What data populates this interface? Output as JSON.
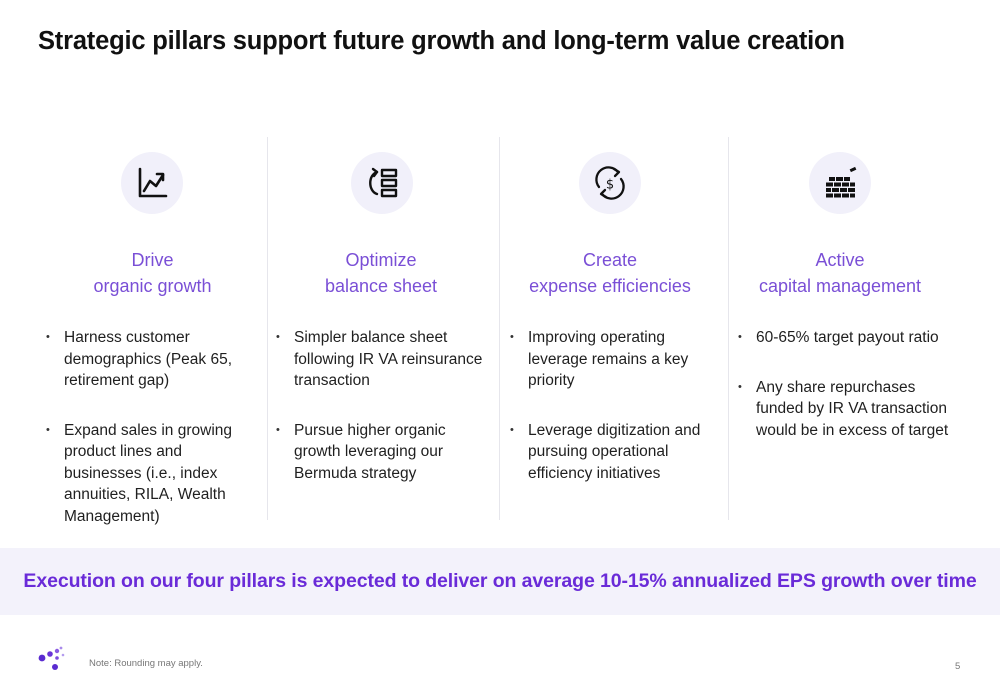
{
  "slide": {
    "title": "Strategic pillars support future growth and long-term value creation",
    "accent_color": "#7a4fd6",
    "banner_color": "#6a2bd8",
    "banner_text": "Execution on our four pillars is expected to deliver on average 10-15% annualized EPS growth over time",
    "note": "Note: Rounding may apply.",
    "page_number": "5"
  },
  "pillars": [
    {
      "icon": "growth-chart-icon",
      "heading_line1": "Drive",
      "heading_line2": "organic growth",
      "bullets": [
        "Harness customer demographics (Peak 65, retirement gap)",
        "Expand sales in growing product lines and businesses (i.e., index annuities, RILA, Wealth Management)"
      ]
    },
    {
      "icon": "balance-sheet-icon",
      "heading_line1": "Optimize",
      "heading_line2": "balance sheet",
      "bullets": [
        "Simpler balance sheet following IR VA reinsurance transaction",
        "Pursue higher organic growth leveraging our Bermuda strategy"
      ]
    },
    {
      "icon": "dollar-cycle-icon",
      "heading_line1": "Create",
      "heading_line2": "expense efficiencies",
      "bullets": [
        "Improving operating leverage remains a key priority",
        "Leverage digitization and pursuing operational efficiency initiatives"
      ]
    },
    {
      "icon": "brick-wall-icon",
      "heading_line1": "Active",
      "heading_line2": "capital management",
      "bullets": [
        "60-65% target payout ratio",
        "Any share repurchases funded by IR VA transaction would be in excess of target"
      ]
    }
  ]
}
